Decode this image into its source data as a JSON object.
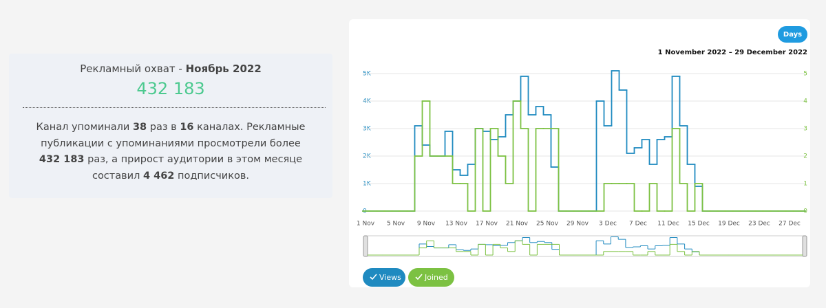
{
  "summary": {
    "title_prefix": "Рекламный охват - ",
    "title_month": "Ноябрь 2022",
    "reach": "432 183",
    "text": [
      "Канал упоминали ",
      "38",
      " раз в ",
      "16",
      " каналах. Рекламные публикации с упоминаниями просмотрели более ",
      "432 183",
      " раз, а прирост аудитории в этом месяце составил ",
      "4 462",
      " подписчиков."
    ]
  },
  "chart_data": {
    "type": "step",
    "range_button": "Days",
    "date_range": "1 November 2022 – 29 December 2022",
    "categories": [
      "1 Nov",
      null,
      null,
      null,
      "5 Nov",
      null,
      null,
      null,
      "9 Nov",
      null,
      null,
      null,
      "13 Nov",
      null,
      null,
      null,
      "17 Nov",
      null,
      null,
      null,
      "21 Nov",
      null,
      null,
      null,
      "25 Nov",
      null,
      null,
      null,
      "29 Nov",
      null,
      null,
      null,
      "3 Dec",
      null,
      null,
      null,
      "7 Dec",
      null,
      null,
      null,
      "11 Dec",
      null,
      null,
      null,
      "15 Dec",
      null,
      null,
      null,
      "19 Dec",
      null,
      null,
      null,
      "23 Dec",
      null,
      null,
      null,
      "27 Dec",
      null,
      null
    ],
    "series": [
      {
        "name": "Views",
        "color": "#1f8ac0",
        "values": [
          0,
          0,
          0,
          0,
          0,
          0,
          0,
          3100,
          2400,
          2000,
          2000,
          2900,
          1500,
          1300,
          1700,
          3000,
          2900,
          2600,
          2700,
          3500,
          4000,
          4900,
          3500,
          3800,
          3500,
          1600,
          0,
          0,
          0,
          0,
          0,
          4000,
          3100,
          5100,
          4400,
          2100,
          2300,
          2600,
          1700,
          2600,
          2700,
          4900,
          3100,
          1700,
          900,
          0,
          0,
          0,
          0,
          0,
          0,
          0,
          0,
          0,
          0,
          0,
          0,
          0,
          0
        ]
      },
      {
        "name": "Joined",
        "color": "#7cc142",
        "axis": "y2",
        "values": [
          0,
          0,
          0,
          0,
          0,
          0,
          0,
          2,
          4,
          2,
          2,
          2,
          1,
          1,
          0,
          3,
          0,
          3,
          2,
          1,
          4,
          3,
          0,
          3,
          3,
          3,
          0,
          0,
          0,
          0,
          0,
          0,
          1,
          1,
          1,
          1,
          0,
          0,
          1,
          0,
          0,
          3,
          1,
          0,
          1,
          0,
          0,
          0,
          0,
          0,
          0,
          0,
          0,
          0,
          0,
          0,
          0,
          0,
          0
        ]
      }
    ],
    "ylim": [
      0,
      5000
    ],
    "yticks": [
      0,
      {
        "value": 1000,
        "label": "1K"
      },
      {
        "value": 2000,
        "label": "2K"
      },
      {
        "value": 3000,
        "label": "3K"
      },
      {
        "value": 4000,
        "label": "4K"
      },
      {
        "value": 5000,
        "label": "5K"
      }
    ],
    "y2lim": [
      0,
      5
    ],
    "y2ticks": [
      0,
      1,
      2,
      3,
      4,
      5
    ],
    "grid": true
  }
}
